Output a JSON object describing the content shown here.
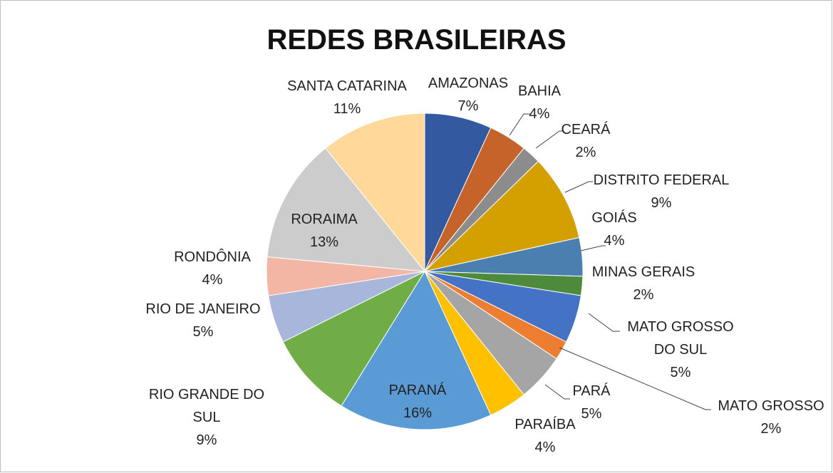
{
  "chart_data": {
    "type": "pie",
    "title": "REDES BRASILEIRAS",
    "categories": [
      "AMAZONAS",
      "BAHIA",
      "CEARÁ",
      "DISTRITO FEDERAL",
      "GOIÁS",
      "MINAS GERAIS",
      "MATO GROSSO DO SUL",
      "MATO GROSSO",
      "PARÁ",
      "PARAÍBA",
      "PARANÁ",
      "RIO GRANDE DO SUL",
      "RIO DE JANEIRO",
      "RONDÔNIA",
      "RORAIMA",
      "SANTA CATARINA"
    ],
    "values": [
      7,
      4,
      2,
      9,
      4,
      2,
      5,
      2,
      5,
      4,
      16,
      9,
      5,
      4,
      13,
      11
    ],
    "value_labels": [
      "7%",
      "4%",
      "2%",
      "9%",
      "4%",
      "2%",
      "5%",
      "2%",
      "5%",
      "4%",
      "16%",
      "9%",
      "5%",
      "4%",
      "13%",
      "11%"
    ],
    "colors": [
      "#335aa1",
      "#c5632a",
      "#8c8c8c",
      "#d4a000",
      "#4a7fb0",
      "#4e8a3c",
      "#4472c4",
      "#ed7d31",
      "#a5a5a5",
      "#ffc000",
      "#5b9bd5",
      "#70ad47",
      "#a9b6dc",
      "#f4b6a4",
      "#cccccc",
      "#ffd89a"
    ]
  }
}
